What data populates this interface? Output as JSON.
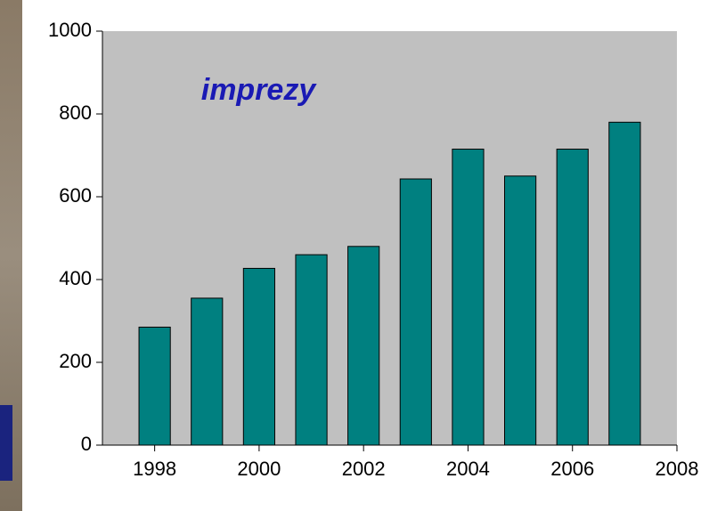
{
  "chart_data": {
    "type": "bar",
    "title": "imprezy",
    "x": [
      1998,
      1999,
      2000,
      2001,
      2002,
      2003,
      2004,
      2005,
      2006,
      2007
    ],
    "values": [
      285,
      355,
      427,
      460,
      480,
      643,
      715,
      650,
      715,
      780
    ],
    "color": "#008080",
    "xlim": [
      1997,
      2008
    ],
    "xticks": [
      1998,
      2000,
      2002,
      2004,
      2006,
      2008
    ],
    "ylim": [
      0,
      1000
    ],
    "yticks": [
      0,
      200,
      400,
      600,
      800,
      1000
    ],
    "grid": false
  }
}
